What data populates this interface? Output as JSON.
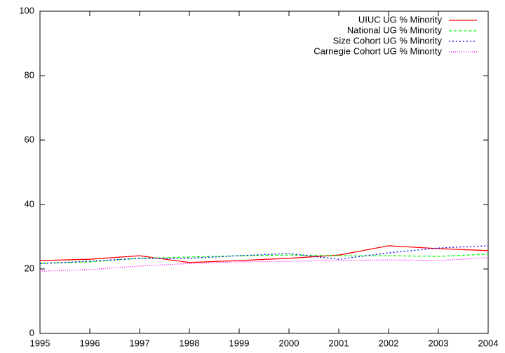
{
  "chart_data": {
    "type": "line",
    "x": [
      1995,
      1996,
      1997,
      1998,
      1999,
      2000,
      2001,
      2002,
      2003,
      2004
    ],
    "series": [
      {
        "name": "UIUC UG % Minority",
        "color": "#ff0000",
        "values": [
          22.6,
          23.0,
          24.1,
          22.0,
          22.6,
          23.3,
          24.3,
          27.2,
          26.3,
          25.7
        ]
      },
      {
        "name": "National UG % Minority",
        "color": "#00ff00",
        "values": [
          21.7,
          22.2,
          23.3,
          23.7,
          24.1,
          24.3,
          24.1,
          24.1,
          23.9,
          24.6
        ]
      },
      {
        "name": "Size Cohort UG % Minority",
        "color": "#0000ff",
        "values": [
          21.7,
          22.4,
          23.3,
          23.3,
          24.1,
          24.8,
          23.0,
          25.0,
          26.5,
          27.2
        ]
      },
      {
        "name": "Carnegie Cohort UG % Minority",
        "color": "#ff00ff",
        "values": [
          19.3,
          19.8,
          20.9,
          21.7,
          22.2,
          22.4,
          22.6,
          22.8,
          22.6,
          23.5
        ]
      }
    ],
    "xlim": [
      1995,
      2004
    ],
    "xticks": [
      1995,
      1996,
      1997,
      1998,
      1999,
      2000,
      2001,
      2002,
      2003,
      2004
    ],
    "ylim": [
      0,
      100
    ],
    "yticks": [
      0,
      20,
      40,
      60,
      80,
      100
    ],
    "grid": false,
    "legend": "top-right"
  }
}
